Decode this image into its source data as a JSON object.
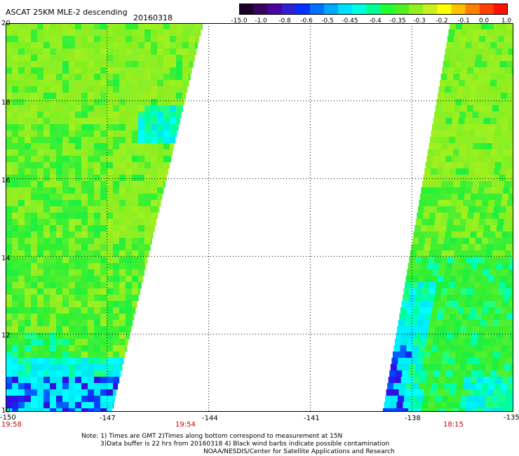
{
  "header": {
    "title": "ASCAT 25KM MLE-2 descending",
    "date": "20160318"
  },
  "colorbar": {
    "labels": [
      "-15.0",
      "-1.0",
      "-0.8",
      "-0.6",
      "-0.5",
      "-0.45",
      "-0.4",
      "-0.35",
      "-0.3",
      "-0.2",
      "-0.1",
      "0.0",
      "1.0"
    ],
    "colors": [
      "#2a0040",
      "#4b0082",
      "#3010c0",
      "#0040ff",
      "#0080ff",
      "#00c0ff",
      "#00ffff",
      "#00ff80",
      "#40ff40",
      "#a0ff20",
      "#ffff00",
      "#ff8000",
      "#ff2000"
    ]
  },
  "map": {
    "lon_ticks": [
      "-150",
      "-147",
      "-144",
      "-141",
      "-138",
      "-135"
    ],
    "lat_ticks": [
      "20",
      "18",
      "16",
      "14",
      "12",
      "10"
    ],
    "lon_range": [
      -150,
      -135
    ],
    "lat_range": [
      10,
      20
    ],
    "times": [
      "19:58",
      "19:54",
      "18:15"
    ]
  },
  "notes": {
    "line1": "Note: 1) Times are GMT 2)Times along bottom correspond to measurement at 15N",
    "line2": "3)Data buffer is 22 hrs from 20160318 4) Black wind barbs indicate possible contamination",
    "line3": "NOAA/NESDIS/Center for Satellite Applications and Research"
  }
}
